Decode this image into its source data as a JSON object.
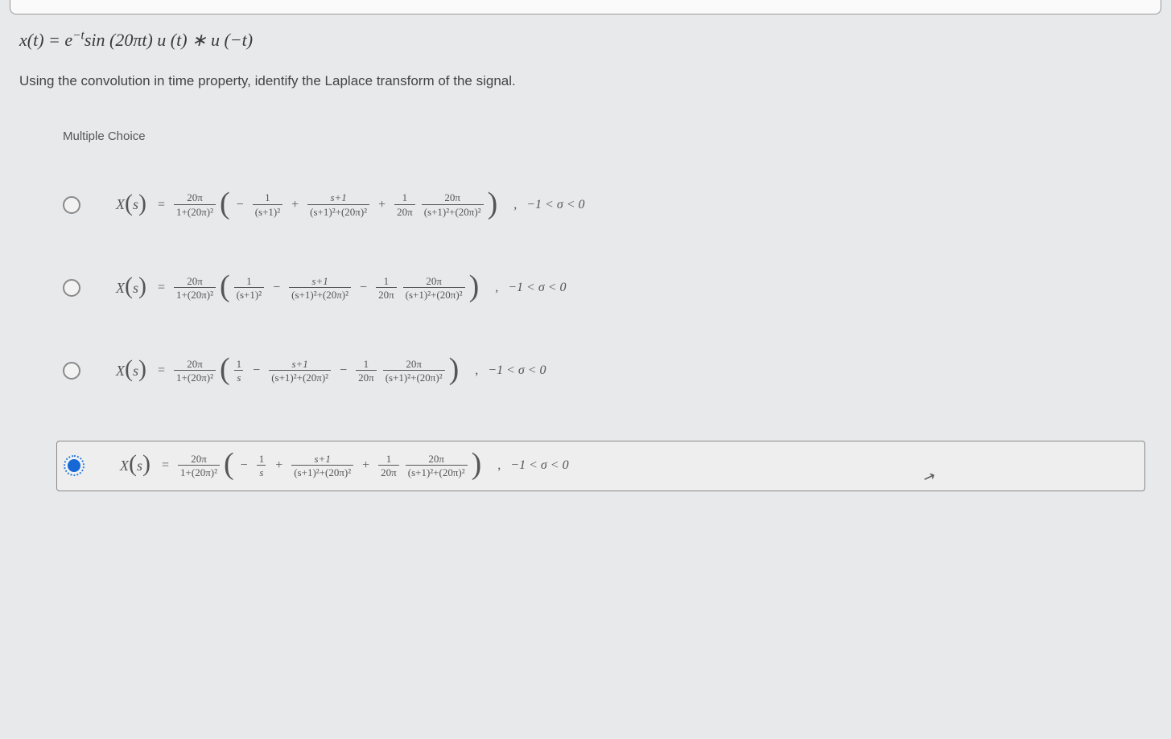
{
  "question": {
    "equation_html": "x(t) = e<sup>&minus;t</sup>sin (20&pi;t) u (t) &lowast; u (&minus;t)",
    "prompt": "Using the convolution in time property, identify the Laplace transform of the signal."
  },
  "mc_label": "Multiple Choice",
  "roc_text": "−1 < σ < 0",
  "common": {
    "prefix_num": "20π",
    "prefix_den": "1+(20π)²",
    "term1a_num": "1",
    "term1a_den": "(s+1)²",
    "term1s_num": "1",
    "term1s_den": "s",
    "term2_num": "s+1",
    "term2_den": "(s+1)²+(20π)²",
    "term3a_num": "1",
    "term3a_den": "20π",
    "term3b_num": "20π",
    "term3b_den": "(s+1)²+(20π)²"
  },
  "choices": [
    {
      "id": "A",
      "leading_sign": "−",
      "first_den": "a",
      "op1": "+",
      "op2": "+",
      "selected": false
    },
    {
      "id": "B",
      "leading_sign": "",
      "first_den": "a",
      "op1": "−",
      "op2": "−",
      "selected": false
    },
    {
      "id": "C",
      "leading_sign": "",
      "first_den": "s",
      "op1": "−",
      "op2": "−",
      "selected": false
    },
    {
      "id": "D",
      "leading_sign": "−",
      "first_den": "s",
      "op1": "+",
      "op2": "+",
      "selected": true
    }
  ],
  "colors": {
    "background": "#e8e9ea",
    "text": "#444",
    "radio_border": "#8a8a8a",
    "radio_selected": "#1668d6"
  }
}
